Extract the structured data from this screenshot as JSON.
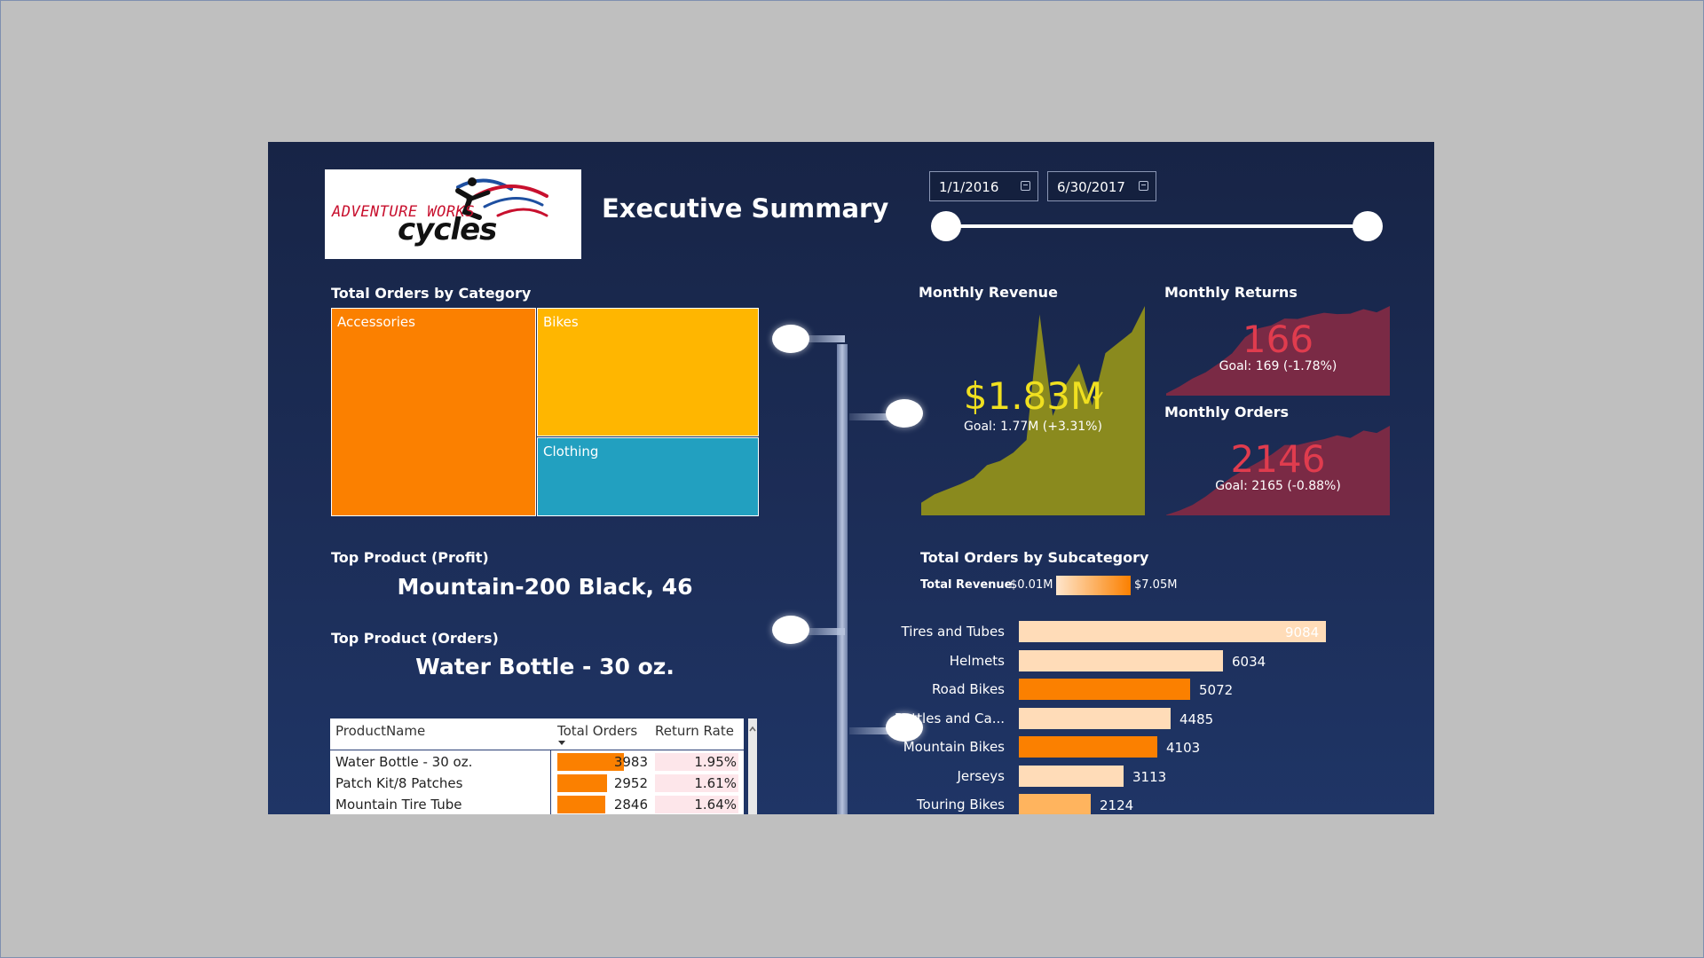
{
  "page": {
    "title": "Executive Summary"
  },
  "logo": {
    "line1": "ADVENTURE WORKS",
    "line2": "cycles"
  },
  "date_slicer": {
    "start": "1/1/2016",
    "end": "6/30/2017"
  },
  "colors": {
    "accessories": "#fb8000",
    "bikes": "#ffb600",
    "clothing": "#22a0c0",
    "revenue_area": "#8a8a1e",
    "returns_area": "#7a2a45",
    "kpi_yellow": "#f0e020",
    "kpi_red": "#e03c4e",
    "bar_light": "#ffdcb8",
    "bar_dark": "#fb8000"
  },
  "treemap": {
    "title": "Total Orders by Category",
    "cells": [
      {
        "label": "Accessories"
      },
      {
        "label": "Bikes"
      },
      {
        "label": "Clothing"
      }
    ]
  },
  "top_profit": {
    "title": "Top Product (Profit)",
    "value": "Mountain-200 Black, 46"
  },
  "top_orders": {
    "title": "Top Product (Orders)",
    "value": "Water Bottle - 30 oz."
  },
  "table": {
    "headers": [
      "ProductName",
      "Total Orders",
      "Return Rate"
    ],
    "max_orders": 5500,
    "rows": [
      {
        "name": "Water Bottle - 30 oz.",
        "orders": 3983,
        "orders_text": "3983",
        "rate": "1.95%"
      },
      {
        "name": "Patch Kit/8 Patches",
        "orders": 2952,
        "orders_text": "2952",
        "rate": "1.61%"
      },
      {
        "name": "Mountain Tire Tube",
        "orders": 2846,
        "orders_text": "2846",
        "rate": "1.64%"
      }
    ]
  },
  "monthly_revenue": {
    "title": "Monthly Revenue",
    "value": "$1.83M",
    "goal": "Goal: 1.77M (+3.31%)"
  },
  "monthly_returns": {
    "title": "Monthly Returns",
    "value": "166",
    "goal": "Goal: 169 (-1.78%)"
  },
  "monthly_orders": {
    "title": "Monthly Orders",
    "value": "2146",
    "goal": "Goal: 2165 (-0.88%)"
  },
  "subcategory": {
    "title": "Total Orders by Subcategory",
    "legend_label": "Total Revenue",
    "legend_min": "$0.01M",
    "legend_max": "$7.05M"
  },
  "chart_data": [
    {
      "type": "bar",
      "orientation": "horizontal",
      "title": "Total Orders by Subcategory",
      "categories": [
        "Tires and Tubes",
        "Helmets",
        "Road Bikes",
        "Bottles and Ca...",
        "Mountain Bikes",
        "Jerseys",
        "Touring Bikes"
      ],
      "values": [
        9084,
        6034,
        5072,
        4485,
        4103,
        3113,
        2124
      ],
      "color_by": "Total Revenue",
      "colors": [
        "#ffdcb8",
        "#ffdcb8",
        "#fb8000",
        "#ffdcb8",
        "#fb8000",
        "#ffdcb8",
        "#ffb45e"
      ],
      "xlim": [
        0,
        9200
      ]
    },
    {
      "type": "area",
      "title": "Monthly Revenue",
      "x": [
        1,
        2,
        3,
        4,
        5,
        6,
        7,
        8,
        9,
        10,
        11,
        12,
        13,
        14,
        15,
        16,
        17,
        18
      ],
      "values": [
        0.12,
        0.2,
        0.25,
        0.3,
        0.36,
        0.48,
        0.52,
        0.6,
        0.72,
        1.92,
        0.95,
        1.25,
        1.45,
        1.05,
        1.55,
        1.65,
        1.75,
        2.0
      ]
    },
    {
      "type": "area",
      "title": "Monthly Returns",
      "x": [
        1,
        2,
        3,
        4,
        5,
        6,
        7,
        8,
        9,
        10,
        11,
        12,
        13,
        14,
        15,
        16,
        17,
        18
      ],
      "values": [
        5,
        20,
        38,
        52,
        72,
        94,
        130,
        150,
        157,
        172,
        171,
        179,
        185,
        182,
        183,
        193,
        186,
        200
      ]
    },
    {
      "type": "area",
      "title": "Monthly Orders",
      "x": [
        1,
        2,
        3,
        4,
        5,
        6,
        7,
        8,
        9,
        10,
        11,
        12,
        13,
        14,
        15,
        16,
        17,
        18
      ],
      "values": [
        10,
        120,
        260,
        470,
        720,
        960,
        1150,
        1330,
        1520,
        1760,
        1760,
        1840,
        1905,
        2000,
        1935,
        2120,
        2060,
        2240
      ]
    }
  ]
}
